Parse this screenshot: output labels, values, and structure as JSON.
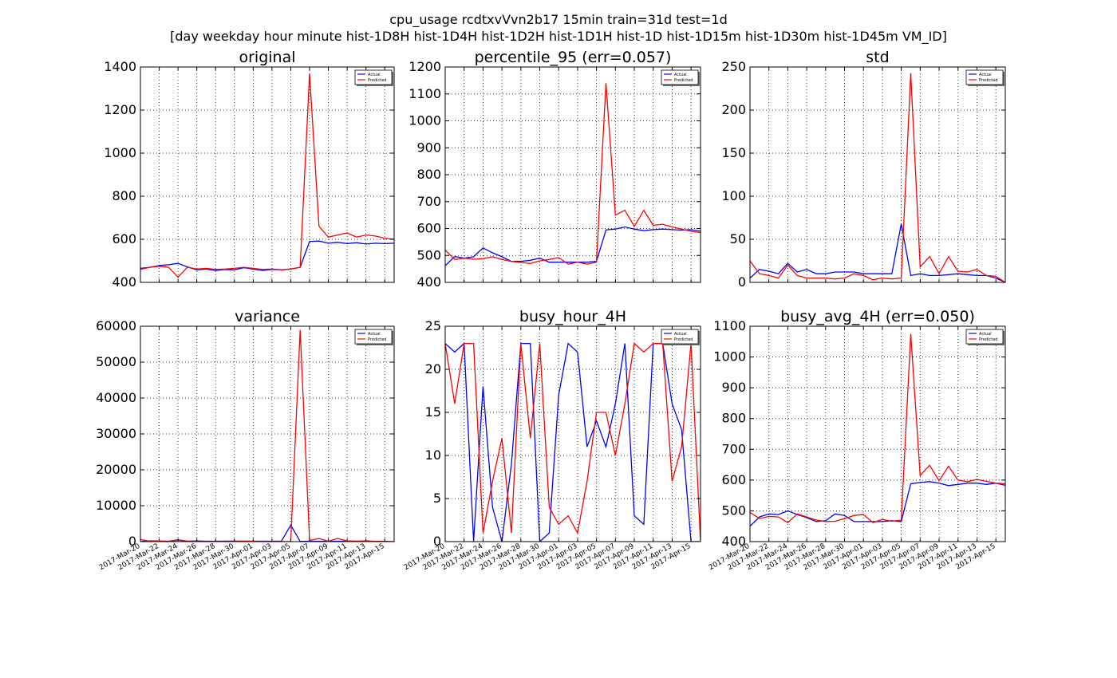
{
  "figure": {
    "title_line1": "cpu_usage rcdtxvVvn2b17 15min train=31d test=1d",
    "title_line2": "[day weekday hour minute hist-1D8H hist-1D4H hist-1D2H hist-1D1H hist-1D hist-1D15m hist-1D30m hist-1D45m VM_ID]"
  },
  "colors": {
    "actual": "#0000ff",
    "predicted": "#ff0000",
    "grid": "#000000"
  },
  "chart_data": [
    {
      "type": "line",
      "title": "original",
      "ylim": [
        400,
        1400
      ],
      "yticks": [
        "400",
        "600",
        "800",
        "1000",
        "1200",
        "1400"
      ],
      "x": [
        "2017-03-20",
        "2017-03-21",
        "2017-03-22",
        "2017-03-23",
        "2017-03-24",
        "2017-03-25",
        "2017-03-26",
        "2017-03-27",
        "2017-03-28",
        "2017-03-29",
        "2017-03-30",
        "2017-03-31",
        "2017-04-01",
        "2017-04-02",
        "2017-04-03",
        "2017-04-04",
        "2017-04-05",
        "2017-04-06",
        "2017-04-07",
        "2017-04-08",
        "2017-04-09",
        "2017-04-10",
        "2017-04-11",
        "2017-04-12",
        "2017-04-13",
        "2017-04-14",
        "2017-04-15",
        "2017-04-16"
      ],
      "series": [
        {
          "name": "Actual",
          "values": [
            465,
            470,
            478,
            482,
            488,
            472,
            458,
            462,
            455,
            460,
            458,
            468,
            462,
            455,
            460,
            458,
            462,
            470,
            590,
            592,
            582,
            586,
            580,
            584,
            578,
            582,
            580,
            582
          ]
        },
        {
          "name": "Predicted",
          "values": [
            460,
            470,
            475,
            470,
            425,
            470,
            462,
            465,
            460,
            462,
            465,
            470,
            465,
            460,
            462,
            458,
            462,
            470,
            1370,
            660,
            610,
            620,
            630,
            610,
            620,
            615,
            605,
            600
          ]
        }
      ],
      "legend": "top-right",
      "grid": true,
      "show_xticks": false
    },
    {
      "type": "line",
      "title": "percentile_95 (err=0.057)",
      "ylim": [
        400,
        1200
      ],
      "yticks": [
        "400",
        "500",
        "600",
        "700",
        "800",
        "900",
        "1000",
        "1100",
        "1200"
      ],
      "x": [
        "2017-03-20",
        "2017-03-21",
        "2017-03-22",
        "2017-03-23",
        "2017-03-24",
        "2017-03-25",
        "2017-03-26",
        "2017-03-27",
        "2017-03-28",
        "2017-03-29",
        "2017-03-30",
        "2017-03-31",
        "2017-04-01",
        "2017-04-02",
        "2017-04-03",
        "2017-04-04",
        "2017-04-05",
        "2017-04-06",
        "2017-04-07",
        "2017-04-08",
        "2017-04-09",
        "2017-04-10",
        "2017-04-11",
        "2017-04-12",
        "2017-04-13",
        "2017-04-14",
        "2017-04-15",
        "2017-04-16"
      ],
      "series": [
        {
          "name": "Actual",
          "values": [
            462,
            496,
            490,
            495,
            528,
            510,
            495,
            478,
            478,
            482,
            490,
            475,
            475,
            475,
            475,
            475,
            478,
            595,
            598,
            606,
            598,
            592,
            596,
            598,
            596,
            594,
            596,
            590
          ]
        },
        {
          "name": "Predicted",
          "values": [
            520,
            485,
            490,
            486,
            488,
            495,
            485,
            478,
            474,
            470,
            480,
            485,
            492,
            468,
            475,
            468,
            475,
            1140,
            650,
            668,
            608,
            668,
            612,
            616,
            606,
            598,
            590,
            585
          ]
        }
      ],
      "legend": "top-right",
      "grid": true,
      "show_xticks": false
    },
    {
      "type": "line",
      "title": "std",
      "ylim": [
        0,
        250
      ],
      "yticks": [
        "0",
        "50",
        "100",
        "150",
        "200",
        "250"
      ],
      "x": [
        "2017-03-20",
        "2017-03-21",
        "2017-03-22",
        "2017-03-23",
        "2017-03-24",
        "2017-03-25",
        "2017-03-26",
        "2017-03-27",
        "2017-03-28",
        "2017-03-29",
        "2017-03-30",
        "2017-03-31",
        "2017-04-01",
        "2017-04-02",
        "2017-04-03",
        "2017-04-04",
        "2017-04-05",
        "2017-04-06",
        "2017-04-07",
        "2017-04-08",
        "2017-04-09",
        "2017-04-10",
        "2017-04-11",
        "2017-04-12",
        "2017-04-13",
        "2017-04-14",
        "2017-04-15",
        "2017-04-16"
      ],
      "series": [
        {
          "name": "Actual",
          "values": [
            5,
            15,
            13,
            10,
            22,
            12,
            15,
            10,
            10,
            12,
            12,
            12,
            10,
            10,
            10,
            10,
            68,
            8,
            10,
            8,
            8,
            9,
            10,
            9,
            8,
            8,
            5,
            0
          ]
        },
        {
          "name": "Predicted",
          "values": [
            25,
            10,
            8,
            5,
            20,
            8,
            5,
            5,
            5,
            4,
            5,
            10,
            8,
            3,
            5,
            4,
            5,
            243,
            18,
            30,
            10,
            30,
            13,
            12,
            15,
            8,
            7,
            0
          ]
        }
      ],
      "legend": "top-right",
      "grid": true,
      "show_xticks": false
    },
    {
      "type": "line",
      "title": "variance",
      "ylim": [
        0,
        60000
      ],
      "yticks": [
        "0",
        "10000",
        "20000",
        "30000",
        "40000",
        "50000",
        "60000"
      ],
      "x": [
        "2017-03-20",
        "2017-03-21",
        "2017-03-22",
        "2017-03-23",
        "2017-03-24",
        "2017-03-25",
        "2017-03-26",
        "2017-03-27",
        "2017-03-28",
        "2017-03-29",
        "2017-03-30",
        "2017-03-31",
        "2017-04-01",
        "2017-04-02",
        "2017-04-03",
        "2017-04-04",
        "2017-04-05",
        "2017-04-06",
        "2017-04-07",
        "2017-04-08",
        "2017-04-09",
        "2017-04-10",
        "2017-04-11",
        "2017-04-12",
        "2017-04-13",
        "2017-04-14",
        "2017-04-15",
        "2017-04-16"
      ],
      "series": [
        {
          "name": "Actual",
          "values": [
            25,
            200,
            150,
            100,
            480,
            140,
            200,
            100,
            100,
            140,
            140,
            140,
            100,
            100,
            100,
            100,
            4600,
            60,
            100,
            60,
            60,
            80,
            100,
            80,
            60,
            60,
            25,
            0
          ]
        },
        {
          "name": "Predicted",
          "values": [
            600,
            100,
            60,
            25,
            400,
            60,
            25,
            25,
            25,
            16,
            25,
            100,
            60,
            10,
            25,
            16,
            25,
            59000,
            300,
            900,
            100,
            900,
            170,
            140,
            220,
            60,
            50,
            0
          ]
        }
      ],
      "legend": "top-right",
      "grid": true,
      "show_xticks": true,
      "xticklabels": [
        "2017-Mar-20",
        "2017-Mar-22",
        "2017-Mar-24",
        "2017-Mar-26",
        "2017-Mar-28",
        "2017-Mar-30",
        "2017-Apr-01",
        "2017-Apr-03",
        "2017-Apr-05",
        "2017-Apr-07",
        "2017-Apr-09",
        "2017-Apr-11",
        "2017-Apr-13",
        "2017-Apr-15"
      ]
    },
    {
      "type": "line",
      "title": "busy_hour_4H",
      "ylim": [
        0,
        25
      ],
      "yticks": [
        "0",
        "5",
        "10",
        "15",
        "20",
        "25"
      ],
      "x": [
        "2017-03-20",
        "2017-03-21",
        "2017-03-22",
        "2017-03-23",
        "2017-03-24",
        "2017-03-25",
        "2017-03-26",
        "2017-03-27",
        "2017-03-28",
        "2017-03-29",
        "2017-03-30",
        "2017-03-31",
        "2017-04-01",
        "2017-04-02",
        "2017-04-03",
        "2017-04-04",
        "2017-04-05",
        "2017-04-06",
        "2017-04-07",
        "2017-04-08",
        "2017-04-09",
        "2017-04-10",
        "2017-04-11",
        "2017-04-12",
        "2017-04-13",
        "2017-04-14",
        "2017-04-15",
        "2017-04-16"
      ],
      "series": [
        {
          "name": "Actual",
          "values": [
            23,
            22,
            23,
            0,
            18,
            4,
            0,
            9,
            23,
            23,
            0,
            1,
            17,
            23,
            22,
            11,
            14,
            11,
            16,
            23,
            3,
            2,
            23,
            23,
            16,
            13,
            0,
            0
          ]
        },
        {
          "name": "Predicted",
          "values": [
            23,
            16,
            23,
            23,
            1,
            7,
            12,
            1,
            23,
            12,
            23,
            4,
            2,
            3,
            1,
            7,
            15,
            15,
            10,
            16,
            23,
            22,
            23,
            23,
            7,
            11,
            23,
            0
          ]
        }
      ],
      "legend": "top-right",
      "grid": true,
      "show_xticks": true,
      "xticklabels": [
        "2017-Mar-20",
        "2017-Mar-22",
        "2017-Mar-24",
        "2017-Mar-26",
        "2017-Mar-28",
        "2017-Mar-30",
        "2017-Apr-01",
        "2017-Apr-03",
        "2017-Apr-05",
        "2017-Apr-07",
        "2017-Apr-09",
        "2017-Apr-11",
        "2017-Apr-13",
        "2017-Apr-15"
      ]
    },
    {
      "type": "line",
      "title": "busy_avg_4H (err=0.050)",
      "ylim": [
        400,
        1100
      ],
      "yticks": [
        "400",
        "500",
        "600",
        "700",
        "800",
        "900",
        "1000",
        "1100"
      ],
      "x": [
        "2017-03-20",
        "2017-03-21",
        "2017-03-22",
        "2017-03-23",
        "2017-03-24",
        "2017-03-25",
        "2017-03-26",
        "2017-03-27",
        "2017-03-28",
        "2017-03-29",
        "2017-03-30",
        "2017-03-31",
        "2017-04-01",
        "2017-04-02",
        "2017-04-03",
        "2017-04-04",
        "2017-04-05",
        "2017-04-06",
        "2017-04-07",
        "2017-04-08",
        "2017-04-09",
        "2017-04-10",
        "2017-04-11",
        "2017-04-12",
        "2017-04-13",
        "2017-04-14",
        "2017-04-15",
        "2017-04-16"
      ],
      "series": [
        {
          "name": "Actual",
          "values": [
            450,
            480,
            490,
            488,
            500,
            488,
            478,
            465,
            468,
            490,
            485,
            465,
            465,
            465,
            465,
            468,
            465,
            588,
            592,
            595,
            590,
            582,
            586,
            590,
            590,
            586,
            590,
            583
          ]
        },
        {
          "name": "Predicted",
          "values": [
            495,
            475,
            482,
            480,
            462,
            490,
            480,
            470,
            465,
            466,
            475,
            485,
            488,
            462,
            472,
            466,
            470,
            1075,
            615,
            648,
            598,
            645,
            600,
            595,
            602,
            596,
            590,
            588
          ]
        }
      ],
      "legend": "top-right",
      "grid": true,
      "show_xticks": true,
      "xticklabels": [
        "2017-Mar-20",
        "2017-Mar-22",
        "2017-Mar-24",
        "2017-Mar-26",
        "2017-Mar-28",
        "2017-Mar-30",
        "2017-Apr-01",
        "2017-Apr-03",
        "2017-Apr-05",
        "2017-Apr-07",
        "2017-Apr-09",
        "2017-Apr-11",
        "2017-Apr-13",
        "2017-Apr-15"
      ]
    }
  ]
}
